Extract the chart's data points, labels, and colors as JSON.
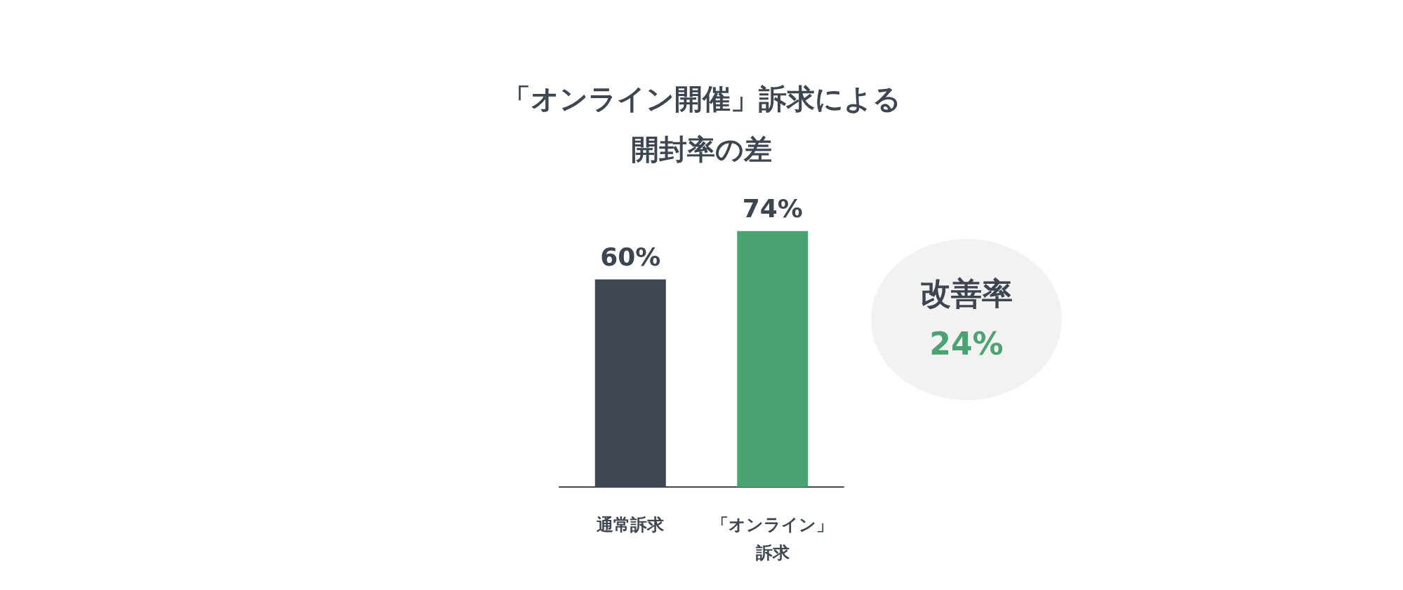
{
  "chart_data": {
    "type": "bar",
    "title": "「オンライン開催」訴求による開封率の差",
    "categories": [
      "通常訴求",
      "「オンライン」訴求"
    ],
    "values": [
      60,
      74
    ],
    "colors": [
      "#3e4651",
      "#4aa472"
    ],
    "value_labels": [
      "60%",
      "74%"
    ],
    "annotations": [
      "改善率",
      "24%"
    ]
  }
}
